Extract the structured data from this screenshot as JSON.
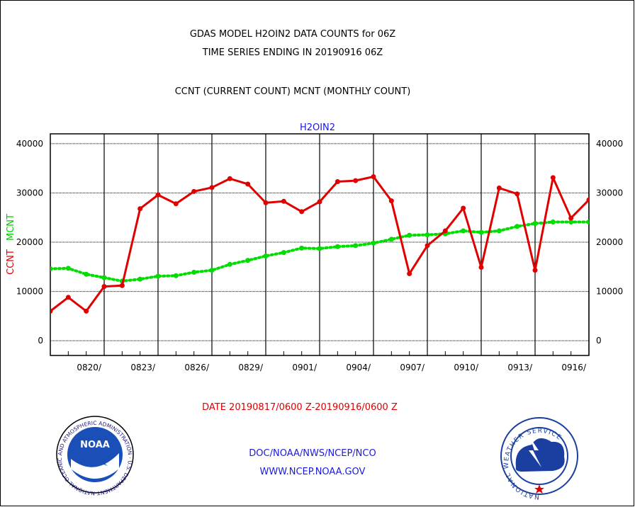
{
  "header": {
    "line1": "GDAS MODEL H2OIN2 DATA COUNTS for 06Z",
    "line2": "TIME SERIES ENDING IN 20190916 06Z",
    "line3": "CCNT (CURRENT COUNT) MCNT (MONTHLY COUNT)"
  },
  "footer": {
    "date_range": "DATE 20190817/0600 Z-20190916/0600 Z",
    "org": "DOC/NOAA/NWS/NCEP/NCO",
    "url": "WWW.NCEP.NOAA.GOV"
  },
  "logos": {
    "noaa_text": "NOAA",
    "noaa_ring": "NATIONAL OCEANIC AND ATMOSPHERIC ADMINISTRATION · U.S. DEPARTMENT OF COMMERCE",
    "nws_ring": "NATIONAL WEATHER SERVICE"
  },
  "colors": {
    "ccnt": "#e00000",
    "mcnt": "#00dd00",
    "title": "#1a1adc",
    "grid": "#000000"
  },
  "chart_data": {
    "type": "line",
    "title": "H2OIN2",
    "ylabel_left": [
      "CCNT",
      "MCNT"
    ],
    "ylim": [
      -3000,
      42000
    ],
    "yticks": [
      0,
      10000,
      20000,
      30000,
      40000
    ],
    "ytick_labels": [
      "0",
      "10000",
      "20000",
      "30000",
      "40000"
    ],
    "x_range": [
      0,
      30
    ],
    "x_grid": [
      3,
      6,
      9,
      12,
      15,
      18,
      21,
      24,
      27,
      30
    ],
    "x_ticks": [
      3,
      6,
      9,
      12,
      15,
      18,
      21,
      24,
      27,
      30
    ],
    "x_tick_labels": [
      "0820/",
      "0823/",
      "0826/",
      "0829/",
      "0901/",
      "0904/",
      "0907/",
      "0910/",
      "0913/",
      "0916/"
    ],
    "x_minor": [
      1,
      2,
      4,
      5,
      7,
      8,
      10,
      11,
      13,
      14,
      16,
      17,
      19,
      20,
      22,
      23,
      25,
      26,
      28,
      29
    ],
    "grid": true,
    "series": [
      {
        "name": "CCNT",
        "color": "#e00000",
        "x": [
          0,
          1,
          2,
          3,
          4,
          5,
          6,
          7,
          8,
          9,
          10,
          11,
          12,
          13,
          14,
          15,
          16,
          17,
          18,
          19,
          20,
          21,
          22,
          23,
          24,
          25,
          26,
          27,
          28,
          29,
          30
        ],
        "values": [
          6000,
          8800,
          6000,
          11000,
          11200,
          26800,
          29600,
          27800,
          30300,
          31100,
          32900,
          31800,
          28000,
          28300,
          26200,
          28200,
          32300,
          32500,
          33300,
          28400,
          13600,
          19300,
          22300,
          26900,
          14900,
          31000,
          29800,
          14300,
          33100,
          24900,
          28600
        ]
      },
      {
        "name": "MCNT",
        "color": "#00dd00",
        "x": [
          0,
          1,
          2,
          3,
          4,
          5,
          6,
          7,
          8,
          9,
          10,
          11,
          12,
          13,
          14,
          15,
          16,
          17,
          18,
          19,
          20,
          21,
          22,
          23,
          24,
          25,
          26,
          27,
          28,
          29,
          30
        ],
        "values": [
          14600,
          14700,
          13500,
          12800,
          12100,
          12500,
          13100,
          13200,
          13900,
          14300,
          15500,
          16300,
          17200,
          17900,
          18800,
          18700,
          19100,
          19300,
          19800,
          20600,
          21400,
          21500,
          21700,
          22300,
          22000,
          22300,
          23200,
          23800,
          24100,
          24100,
          24100
        ]
      }
    ]
  }
}
